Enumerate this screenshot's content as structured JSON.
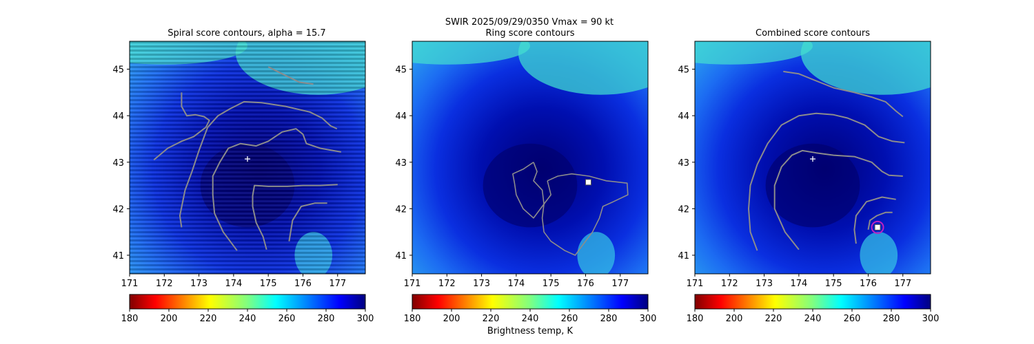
{
  "figure": {
    "suptitle_line1": "SWIR  2025/09/29/0350    Vmax = 90 kt",
    "colorbar_label": "Brightness temp, K"
  },
  "colors": {
    "contour": "#8c8c8c",
    "center_marker": "#ffffff",
    "best_point_marker": "#ffffff",
    "circle_marker": "#c020c0",
    "colormap": "jet (reversed, 300 K dark blue to 180 K dark red)"
  },
  "chart_data": [
    {
      "type": "heatmap",
      "title": "Spiral score contours, alpha = 15.7",
      "xlabel": "",
      "ylabel": "",
      "xlim": [
        171,
        177.8
      ],
      "ylim": [
        40.6,
        45.6
      ],
      "xticks": [
        "171",
        "172",
        "173",
        "174",
        "175",
        "176",
        "177"
      ],
      "yticks": [
        "41",
        "42",
        "43",
        "44",
        "45"
      ],
      "colorbar": {
        "range": [
          180,
          300
        ],
        "ticks": [
          "180",
          "200",
          "220",
          "240",
          "260",
          "280",
          "300"
        ],
        "colormap": "jet_r"
      },
      "background_note": "horizontally striped brightness-temperature field",
      "center_marker": {
        "lon": 174.4,
        "lat": 43.07,
        "symbol": "+"
      },
      "contours": [
        [
          [
            175.0,
            45.05
          ],
          [
            175.4,
            44.9
          ],
          [
            175.9,
            44.72
          ],
          [
            176.3,
            44.68
          ]
        ],
        [
          [
            172.5,
            44.5
          ],
          [
            172.5,
            44.2
          ],
          [
            172.65,
            44.0
          ],
          [
            172.9,
            44.02
          ],
          [
            173.15,
            43.98
          ],
          [
            173.3,
            43.9
          ],
          [
            173.2,
            43.75
          ],
          [
            172.85,
            43.55
          ],
          [
            172.5,
            43.45
          ],
          [
            172.1,
            43.3
          ],
          [
            171.7,
            43.05
          ]
        ],
        [
          [
            172.5,
            41.6
          ],
          [
            172.45,
            41.85
          ],
          [
            172.6,
            42.4
          ],
          [
            172.8,
            42.8
          ],
          [
            173.0,
            43.25
          ],
          [
            173.25,
            43.75
          ],
          [
            173.55,
            44.0
          ],
          [
            173.9,
            44.15
          ],
          [
            174.3,
            44.3
          ],
          [
            174.8,
            44.28
          ],
          [
            175.5,
            44.2
          ],
          [
            176.2,
            44.08
          ],
          [
            176.55,
            43.95
          ],
          [
            176.8,
            43.78
          ],
          [
            176.98,
            43.72
          ]
        ],
        [
          [
            174.1,
            41.1
          ],
          [
            173.7,
            41.5
          ],
          [
            173.45,
            41.9
          ],
          [
            173.4,
            42.3
          ],
          [
            173.4,
            42.7
          ],
          [
            173.6,
            43.0
          ],
          [
            173.85,
            43.3
          ],
          [
            174.2,
            43.4
          ],
          [
            174.65,
            43.35
          ],
          [
            175.0,
            43.45
          ],
          [
            175.4,
            43.65
          ],
          [
            175.8,
            43.72
          ],
          [
            176.0,
            43.6
          ],
          [
            176.1,
            43.4
          ],
          [
            176.5,
            43.3
          ],
          [
            177.1,
            43.22
          ]
        ],
        [
          [
            174.95,
            41.12
          ],
          [
            174.85,
            41.4
          ],
          [
            174.65,
            41.7
          ],
          [
            174.55,
            42.05
          ],
          [
            174.55,
            42.28
          ],
          [
            174.6,
            42.5
          ],
          [
            175.0,
            42.48
          ],
          [
            175.55,
            42.48
          ],
          [
            176.0,
            42.5
          ],
          [
            176.5,
            42.5
          ],
          [
            177.0,
            42.52
          ]
        ],
        [
          [
            175.6,
            41.3
          ],
          [
            175.7,
            41.75
          ],
          [
            175.95,
            42.05
          ],
          [
            176.35,
            42.12
          ],
          [
            176.7,
            42.12
          ]
        ]
      ]
    },
    {
      "type": "heatmap",
      "title": "Ring score contours",
      "xlabel": "",
      "ylabel": "",
      "xlim": [
        171,
        177.8
      ],
      "ylim": [
        40.6,
        45.6
      ],
      "xticks": [
        "171",
        "172",
        "173",
        "174",
        "175",
        "176",
        "177"
      ],
      "yticks": [
        "41",
        "42",
        "43",
        "44",
        "45"
      ],
      "colorbar": {
        "range": [
          180,
          300
        ],
        "ticks": [
          "180",
          "200",
          "220",
          "240",
          "260",
          "280",
          "300"
        ],
        "colormap": "jet_r"
      },
      "best_point_marker": {
        "lon": 176.08,
        "lat": 42.57,
        "symbol": "square"
      },
      "contours": [
        [
          [
            174.5,
            43.0
          ],
          [
            174.2,
            42.85
          ],
          [
            173.9,
            42.75
          ],
          [
            173.95,
            42.55
          ],
          [
            174.0,
            42.3
          ],
          [
            174.2,
            42.0
          ],
          [
            174.5,
            41.8
          ],
          [
            174.8,
            42.1
          ],
          [
            174.75,
            42.4
          ],
          [
            174.5,
            42.6
          ],
          [
            174.6,
            42.8
          ],
          [
            174.5,
            43.0
          ]
        ],
        [
          [
            174.9,
            42.6
          ],
          [
            175.2,
            42.7
          ],
          [
            175.6,
            42.75
          ],
          [
            176.1,
            42.7
          ],
          [
            176.6,
            42.6
          ],
          [
            177.2,
            42.55
          ],
          [
            177.22,
            42.3
          ],
          [
            176.8,
            42.15
          ],
          [
            176.5,
            42.05
          ],
          [
            176.4,
            41.8
          ],
          [
            176.2,
            41.5
          ],
          [
            175.9,
            41.2
          ],
          [
            175.7,
            41.0
          ],
          [
            175.4,
            41.1
          ],
          [
            175.0,
            41.3
          ],
          [
            174.8,
            41.5
          ],
          [
            174.75,
            41.8
          ],
          [
            174.8,
            42.1
          ],
          [
            175.0,
            42.3
          ],
          [
            174.9,
            42.6
          ]
        ]
      ]
    },
    {
      "type": "heatmap",
      "title": "Combined score contours",
      "xlabel": "",
      "ylabel": "",
      "xlim": [
        171,
        177.8
      ],
      "ylim": [
        40.6,
        45.6
      ],
      "xticks": [
        "171",
        "172",
        "173",
        "174",
        "175",
        "176",
        "177"
      ],
      "yticks": [
        "41",
        "42",
        "43",
        "44",
        "45"
      ],
      "colorbar": {
        "range": [
          180,
          300
        ],
        "ticks": [
          "180",
          "200",
          "220",
          "240",
          "260",
          "280",
          "300"
        ],
        "colormap": "jet_r"
      },
      "center_marker": {
        "lon": 174.4,
        "lat": 43.07,
        "symbol": "+"
      },
      "best_point_marker": {
        "lon": 176.27,
        "lat": 41.6,
        "symbol": "square"
      },
      "circle_marker": {
        "lon": 176.27,
        "lat": 41.6
      },
      "contours": [
        [
          [
            173.55,
            44.95
          ],
          [
            174.0,
            44.9
          ],
          [
            174.5,
            44.75
          ],
          [
            175.0,
            44.6
          ],
          [
            175.6,
            44.5
          ],
          [
            176.1,
            44.4
          ],
          [
            176.5,
            44.3
          ],
          [
            176.8,
            44.1
          ],
          [
            177.0,
            43.98
          ]
        ],
        [
          [
            172.8,
            41.1
          ],
          [
            172.6,
            41.5
          ],
          [
            172.55,
            42.0
          ],
          [
            172.6,
            42.5
          ],
          [
            172.8,
            42.95
          ],
          [
            173.1,
            43.4
          ],
          [
            173.5,
            43.8
          ],
          [
            174.0,
            44.0
          ],
          [
            174.5,
            44.05
          ],
          [
            175.0,
            44.02
          ],
          [
            175.4,
            43.95
          ],
          [
            175.9,
            43.8
          ],
          [
            176.3,
            43.55
          ],
          [
            176.7,
            43.45
          ],
          [
            177.05,
            43.42
          ]
        ],
        [
          [
            174.0,
            41.12
          ],
          [
            173.6,
            41.5
          ],
          [
            173.3,
            42.0
          ],
          [
            173.3,
            42.5
          ],
          [
            173.5,
            42.9
          ],
          [
            173.8,
            43.15
          ],
          [
            174.1,
            43.25
          ],
          [
            174.5,
            43.2
          ],
          [
            175.0,
            43.15
          ],
          [
            175.6,
            43.12
          ],
          [
            176.1,
            43.0
          ],
          [
            176.4,
            42.8
          ],
          [
            176.6,
            42.72
          ],
          [
            177.0,
            42.7
          ]
        ],
        [
          [
            175.65,
            41.25
          ],
          [
            175.6,
            41.55
          ],
          [
            175.65,
            41.85
          ],
          [
            175.95,
            42.15
          ],
          [
            176.4,
            42.25
          ],
          [
            176.8,
            42.2
          ]
        ],
        [
          [
            176.0,
            41.55
          ],
          [
            176.05,
            41.75
          ],
          [
            176.25,
            41.85
          ],
          [
            176.5,
            41.92
          ],
          [
            176.7,
            41.92
          ]
        ]
      ]
    }
  ]
}
